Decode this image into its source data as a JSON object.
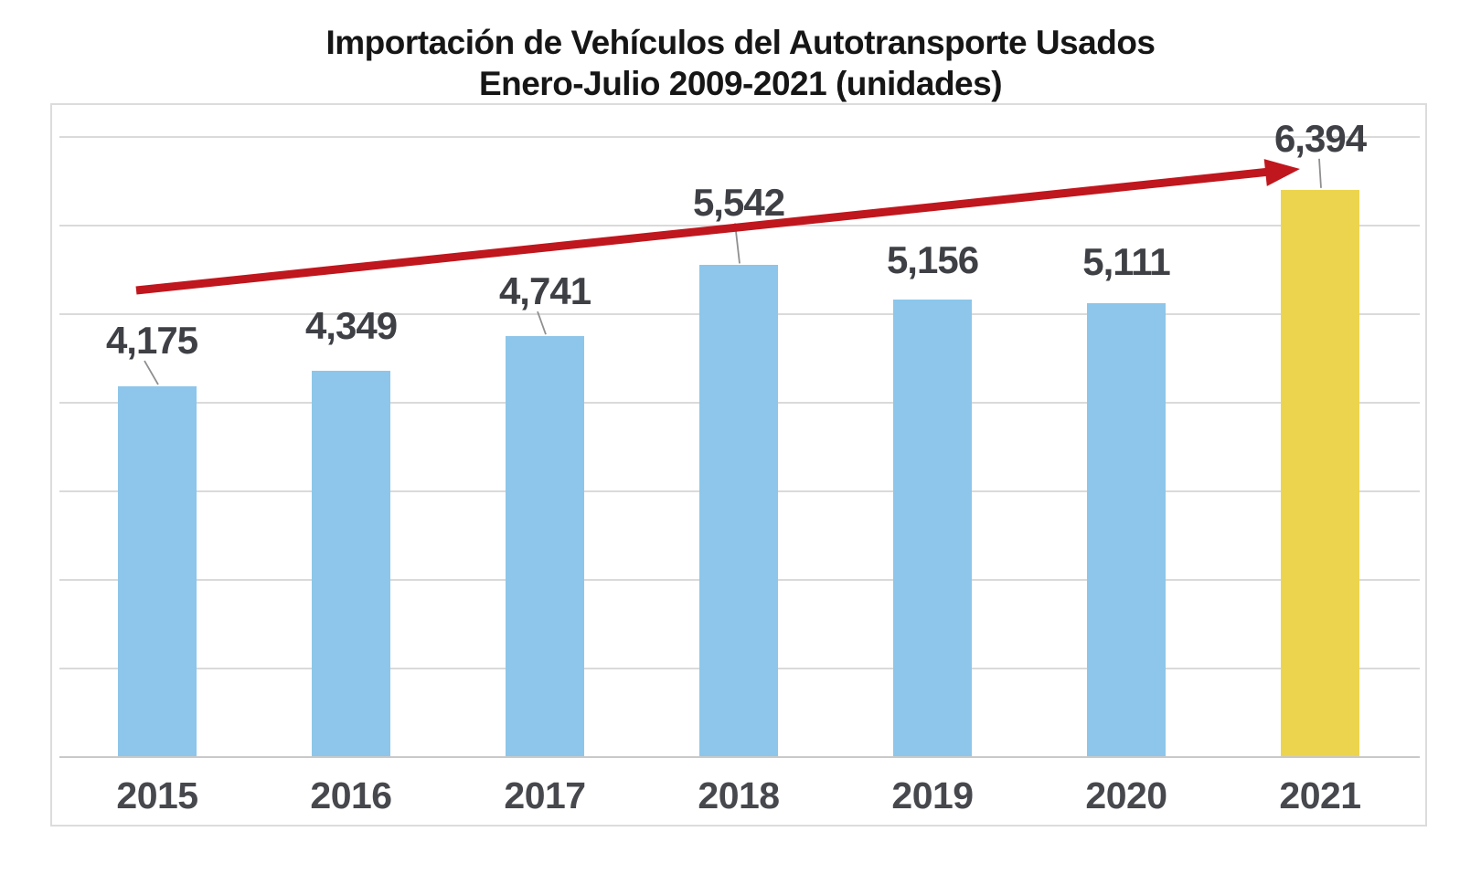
{
  "title": {
    "line1": "Importación de Vehículos del Autotransporte Usados",
    "line2": "Enero-Julio 2009-2021 (unidades)"
  },
  "colors": {
    "background": "#FFFFFF",
    "bar_blue": "#8DC6EA",
    "bar_highlight_yellow": "#EDD44E",
    "arrow_red": "#C0161D",
    "value_label_gray": "#3E4045",
    "axis_label_gray": "#47484D",
    "gridline_gray": "#DADADA",
    "axis_line_gray": "#C9C9C9",
    "border_gray": "#DCDCDC",
    "leader_line_gray": "#8F8F8F",
    "title_black": "#161616"
  },
  "chart_data": {
    "type": "bar",
    "title": "Importación de Vehículos del Autotransporte Usados",
    "subtitle": "Enero-Julio 2009-2021 (unidades)",
    "categories": [
      "2015",
      "2016",
      "2017",
      "2018",
      "2019",
      "2020",
      "2021"
    ],
    "values": [
      4175,
      4349,
      4741,
      5542,
      5156,
      5111,
      6394
    ],
    "labels": [
      "4,175",
      "4,349",
      "4,741",
      "5,542",
      "5,156",
      "5,111",
      "6,394"
    ],
    "xlabel": "",
    "ylabel": "",
    "ylim": [
      0,
      7000
    ],
    "gridline_interval": 1000,
    "grid": "horizontal",
    "y_tick_labels_visible": false,
    "legend_position": "none",
    "bar_color": "#8DC6EA",
    "highlight_index": 6,
    "highlight_color": "#EDD44E",
    "annotation": {
      "type": "trend-arrow",
      "color": "#C0161D",
      "from_category": "2015",
      "to_category": "2021"
    },
    "label_layout": [
      {
        "gap": 30,
        "leader": true,
        "leader_dx": -14,
        "dx": -6
      },
      {
        "gap": 29,
        "leader": false,
        "leader_dx": 0,
        "dx": 0
      },
      {
        "gap": 29,
        "leader": true,
        "leader_dx": -8,
        "dx": 0
      },
      {
        "gap": 48,
        "leader": true,
        "leader_dx": -4,
        "dx": 0
      },
      {
        "gap": 23,
        "leader": false,
        "leader_dx": 0,
        "dx": 0
      },
      {
        "gap": 25,
        "leader": false,
        "leader_dx": 0,
        "dx": 0
      },
      {
        "gap": 36,
        "leader": true,
        "leader_dx": -1,
        "dx": 0
      }
    ]
  }
}
